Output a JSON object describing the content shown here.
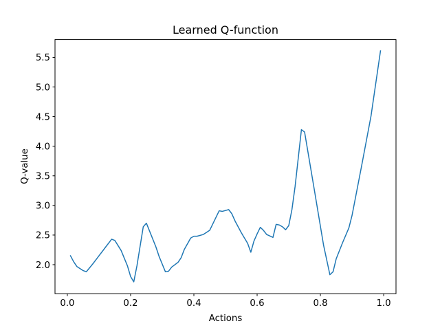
{
  "chart_data": {
    "type": "line",
    "title": "Learned Q-function",
    "xlabel": "Actions",
    "ylabel": "Q-value",
    "xlim": [
      -0.039,
      1.039
    ],
    "ylim": [
      1.51,
      5.8
    ],
    "xticks": [
      0.0,
      0.2,
      0.4,
      0.6,
      0.8,
      1.0
    ],
    "xtick_labels": [
      "0.0",
      "0.2",
      "0.4",
      "0.6",
      "0.8",
      "1.0"
    ],
    "yticks": [
      2.0,
      2.5,
      3.0,
      3.5,
      4.0,
      4.5,
      5.0,
      5.5
    ],
    "ytick_labels": [
      "2.0",
      "2.5",
      "3.0",
      "3.5",
      "4.0",
      "4.5",
      "5.0",
      "5.5"
    ],
    "grid": false,
    "series": [
      {
        "color": "#1f77b4",
        "x": [
          0.01,
          0.02,
          0.03,
          0.05,
          0.06,
          0.08,
          0.1,
          0.12,
          0.14,
          0.15,
          0.17,
          0.19,
          0.2,
          0.21,
          0.22,
          0.24,
          0.25,
          0.28,
          0.29,
          0.31,
          0.32,
          0.33,
          0.35,
          0.36,
          0.37,
          0.39,
          0.4,
          0.41,
          0.43,
          0.45,
          0.47,
          0.48,
          0.49,
          0.51,
          0.52,
          0.53,
          0.55,
          0.57,
          0.58,
          0.59,
          0.6,
          0.61,
          0.62,
          0.63,
          0.65,
          0.66,
          0.67,
          0.68,
          0.69,
          0.7,
          0.71,
          0.72,
          0.74,
          0.75,
          0.78,
          0.81,
          0.83,
          0.84,
          0.85,
          0.87,
          0.89,
          0.9,
          0.93,
          0.96,
          0.99
        ],
        "y": [
          2.15,
          2.05,
          1.97,
          1.9,
          1.88,
          2.01,
          2.15,
          2.29,
          2.43,
          2.41,
          2.24,
          1.98,
          1.8,
          1.71,
          1.98,
          2.64,
          2.7,
          2.3,
          2.14,
          1.88,
          1.89,
          1.96,
          2.04,
          2.12,
          2.26,
          2.45,
          2.48,
          2.48,
          2.51,
          2.58,
          2.8,
          2.91,
          2.9,
          2.93,
          2.86,
          2.74,
          2.54,
          2.36,
          2.21,
          2.4,
          2.52,
          2.63,
          2.58,
          2.51,
          2.46,
          2.68,
          2.67,
          2.64,
          2.59,
          2.66,
          2.93,
          3.32,
          4.28,
          4.24,
          3.29,
          2.33,
          1.83,
          1.88,
          2.1,
          2.37,
          2.62,
          2.83,
          3.66,
          4.51,
          5.61
        ]
      }
    ]
  }
}
